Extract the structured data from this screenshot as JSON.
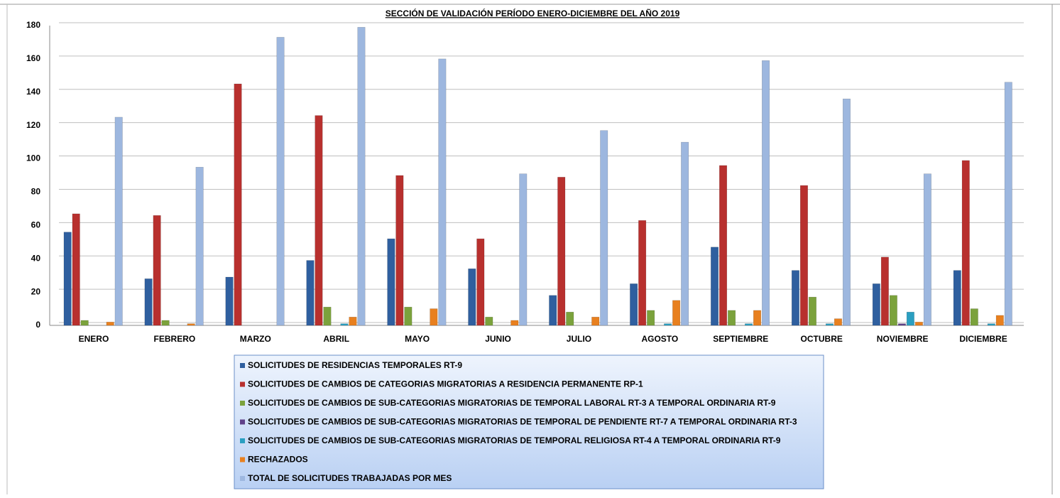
{
  "chart_data": {
    "type": "bar",
    "title": "SECCIÓN DE VALIDACIÓN PERÍODO ENERO-DICIEMBRE DEL AÑO 2019",
    "categories": [
      "ENERO",
      "FEBRERO",
      "MARZO",
      "ABRIL",
      "MAYO",
      "JUNIO",
      "JULIO",
      "AGOSTO",
      "SEPTIEMBRE",
      "OCTUBRE",
      "NOVIEMBRE",
      "DICIEMBRE"
    ],
    "series": [
      {
        "name": "SOLICITUDES DE RESIDENCIAS TEMPORALES RT-9",
        "color": "#2f5f9f",
        "values": [
          56,
          28,
          29,
          39,
          52,
          34,
          18,
          25,
          47,
          33,
          25,
          33
        ]
      },
      {
        "name": "SOLICITUDES DE CAMBIOS DE CATEGORIAS MIGRATORIAS A RESIDENCIA PERMANENTE RP-1",
        "color": "#b8302e",
        "values": [
          67,
          66,
          145,
          126,
          90,
          52,
          89,
          63,
          96,
          84,
          41,
          99
        ]
      },
      {
        "name": "SOLICITUDES DE CAMBIOS DE SUB-CATEGORIAS MIGRATORIAS DE TEMPORAL LABORAL RT-3 A TEMPORAL ORDINARIA RT-9",
        "color": "#7ba23c",
        "values": [
          3,
          3,
          0,
          11,
          11,
          5,
          8,
          9,
          9,
          17,
          18,
          10
        ]
      },
      {
        "name": "SOLICITUDES DE CAMBIOS DE SUB-CATEGORIAS MIGRATORIAS DE TEMPORAL DE PENDIENTE RT-7 A TEMPORAL ORDINARIA RT-3",
        "color": "#604189",
        "values": [
          0,
          0,
          0,
          0,
          0,
          0,
          0,
          0,
          0,
          0,
          1,
          0
        ]
      },
      {
        "name": "SOLICITUDES DE CAMBIOS DE SUB-CATEGORIAS MIGRATORIAS DE TEMPORAL RELIGIOSA RT-4 A TEMPORAL ORDINARIA RT-9",
        "color": "#2a9fc1",
        "values": [
          0,
          0,
          0,
          1,
          0,
          0,
          0,
          1,
          1,
          1,
          8,
          1
        ]
      },
      {
        "name": "RECHAZADOS",
        "color": "#e8801f",
        "values": [
          2,
          1,
          0,
          5,
          10,
          3,
          5,
          15,
          9,
          4,
          2,
          6
        ]
      },
      {
        "name": "TOTAL DE SOLICITUDES TRABAJADAS POR MES",
        "color": "#9db7df",
        "values": [
          125,
          95,
          173,
          179,
          160,
          91,
          117,
          110,
          159,
          136,
          91,
          146
        ]
      }
    ],
    "ylim": [
      0,
      180
    ],
    "yticks": [
      0,
      20,
      40,
      60,
      80,
      100,
      120,
      140,
      160,
      180
    ],
    "grid": true
  }
}
